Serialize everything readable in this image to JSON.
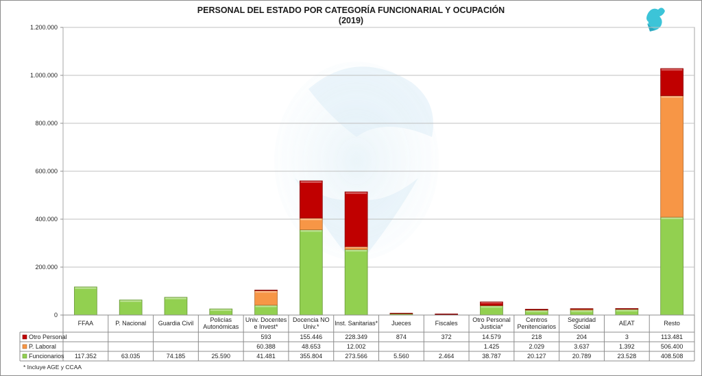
{
  "chart_data": {
    "type": "bar",
    "stacked": true,
    "title": "PERSONAL DEL ESTADO POR CATEGORÍA FUNCIONARIAL Y OCUPACIÓN",
    "subtitle": "(2019)",
    "ylim": [
      0,
      1200000
    ],
    "y_ticks": [
      "0",
      "200.000",
      "400.000",
      "600.000",
      "800.000",
      "1.000.000",
      "1.200.000"
    ],
    "y_tick_values": [
      0,
      200000,
      400000,
      600000,
      800000,
      1000000,
      1200000
    ],
    "grid": true,
    "legend_placement": "data-table-left",
    "categories": [
      [
        "FFAA"
      ],
      [
        "P. Nacional"
      ],
      [
        "Guardia Civil"
      ],
      [
        "Policías",
        "Autonómicas"
      ],
      [
        "Univ. Docentes",
        "e Invest*"
      ],
      [
        "Docencia NO",
        "Univ.*"
      ],
      [
        "Inst. Sanitarias*"
      ],
      [
        "Jueces"
      ],
      [
        "Fiscales"
      ],
      [
        "Otro Personal",
        "Justicia*"
      ],
      [
        "Centros",
        "Penitenciarios"
      ],
      [
        "Seguridad",
        "Social"
      ],
      [
        "AEAT"
      ],
      [
        "Resto"
      ]
    ],
    "series": [
      {
        "name": "Otro Personal",
        "color": "#c00000",
        "values": [
          null,
          null,
          null,
          null,
          593,
          155446,
          228349,
          874,
          372,
          14579,
          218,
          204,
          3,
          113481
        ],
        "labels": [
          "",
          "",
          "",
          "",
          "593",
          "155.446",
          "228.349",
          "874",
          "372",
          "14.579",
          "218",
          "204",
          "3",
          "113.481"
        ]
      },
      {
        "name": "P. Laboral",
        "color": "#f79646",
        "values": [
          null,
          null,
          null,
          null,
          60388,
          48653,
          12002,
          null,
          null,
          1425,
          2029,
          3637,
          1392,
          506400
        ],
        "labels": [
          "",
          "",
          "",
          "",
          "60.388",
          "48.653",
          "12.002",
          "",
          "",
          "1.425",
          "2.029",
          "3.637",
          "1.392",
          "506.400"
        ]
      },
      {
        "name": "Funcionarios",
        "color": "#92d050",
        "values": [
          117352,
          63035,
          74185,
          25590,
          41481,
          355804,
          273566,
          5560,
          2464,
          38787,
          20127,
          20789,
          23528,
          408508
        ],
        "labels": [
          "117.352",
          "63.035",
          "74.185",
          "25.590",
          "41.481",
          "355.804",
          "273.566",
          "5.560",
          "2.464",
          "38.787",
          "20.127",
          "20.789",
          "23.528",
          "408.508"
        ]
      }
    ],
    "footnote": "* Incluye AGE y CCAA"
  }
}
